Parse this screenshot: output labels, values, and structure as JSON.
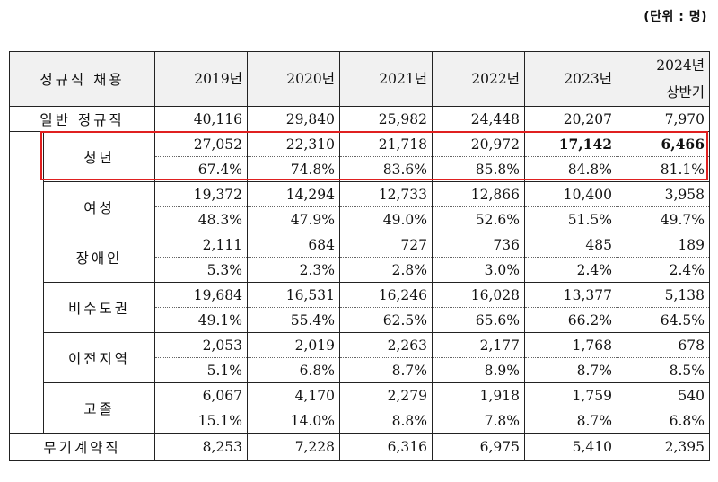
{
  "unit_label": "(단위 : 명)",
  "header": {
    "category": "정규직 채용",
    "years": [
      {
        "line1": "2019년",
        "line2": ""
      },
      {
        "line1": "2020년",
        "line2": ""
      },
      {
        "line1": "2021년",
        "line2": ""
      },
      {
        "line1": "2022년",
        "line2": ""
      },
      {
        "line1": "2023년",
        "line2": ""
      },
      {
        "line1": "2024년",
        "line2": "상반기"
      }
    ]
  },
  "general": {
    "label": "일반 정규직",
    "values": [
      "40,116",
      "29,840",
      "25,982",
      "24,448",
      "20,207",
      "7,970"
    ]
  },
  "groups": [
    {
      "label": "청년",
      "counts": [
        "27,052",
        "22,310",
        "21,718",
        "20,972",
        "17,142",
        "6,466"
      ],
      "ratios": [
        "67.4%",
        "74.8%",
        "83.6%",
        "85.8%",
        "84.8%",
        "81.1%"
      ],
      "highlighted": true
    },
    {
      "label": "여성",
      "counts": [
        "19,372",
        "14,294",
        "12,733",
        "12,866",
        "10,400",
        "3,958"
      ],
      "ratios": [
        "48.3%",
        "47.9%",
        "49.0%",
        "52.6%",
        "51.5%",
        "49.7%"
      ]
    },
    {
      "label": "장애인",
      "counts": [
        "2,111",
        "684",
        "727",
        "736",
        "485",
        "189"
      ],
      "ratios": [
        "5.3%",
        "2.3%",
        "2.8%",
        "3.0%",
        "2.4%",
        "2.4%"
      ]
    },
    {
      "label": "비수도권",
      "counts": [
        "19,684",
        "16,531",
        "16,246",
        "16,028",
        "13,377",
        "5,138"
      ],
      "ratios": [
        "49.1%",
        "55.4%",
        "62.5%",
        "65.6%",
        "66.2%",
        "64.5%"
      ]
    },
    {
      "label": "이전지역",
      "counts": [
        "2,053",
        "2,019",
        "2,263",
        "2,177",
        "1,768",
        "678"
      ],
      "ratios": [
        "5.1%",
        "6.8%",
        "8.7%",
        "8.9%",
        "8.7%",
        "8.5%"
      ]
    },
    {
      "label": "고졸",
      "counts": [
        "6,067",
        "4,170",
        "2,279",
        "1,918",
        "1,759",
        "540"
      ],
      "ratios": [
        "15.1%",
        "14.0%",
        "8.8%",
        "7.8%",
        "8.7%",
        "6.8%"
      ]
    }
  ],
  "contract": {
    "label": "무기계약직",
    "values": [
      "8,253",
      "7,228",
      "6,316",
      "6,975",
      "5,410",
      "2,395"
    ]
  },
  "highlight_color": "#e02020"
}
